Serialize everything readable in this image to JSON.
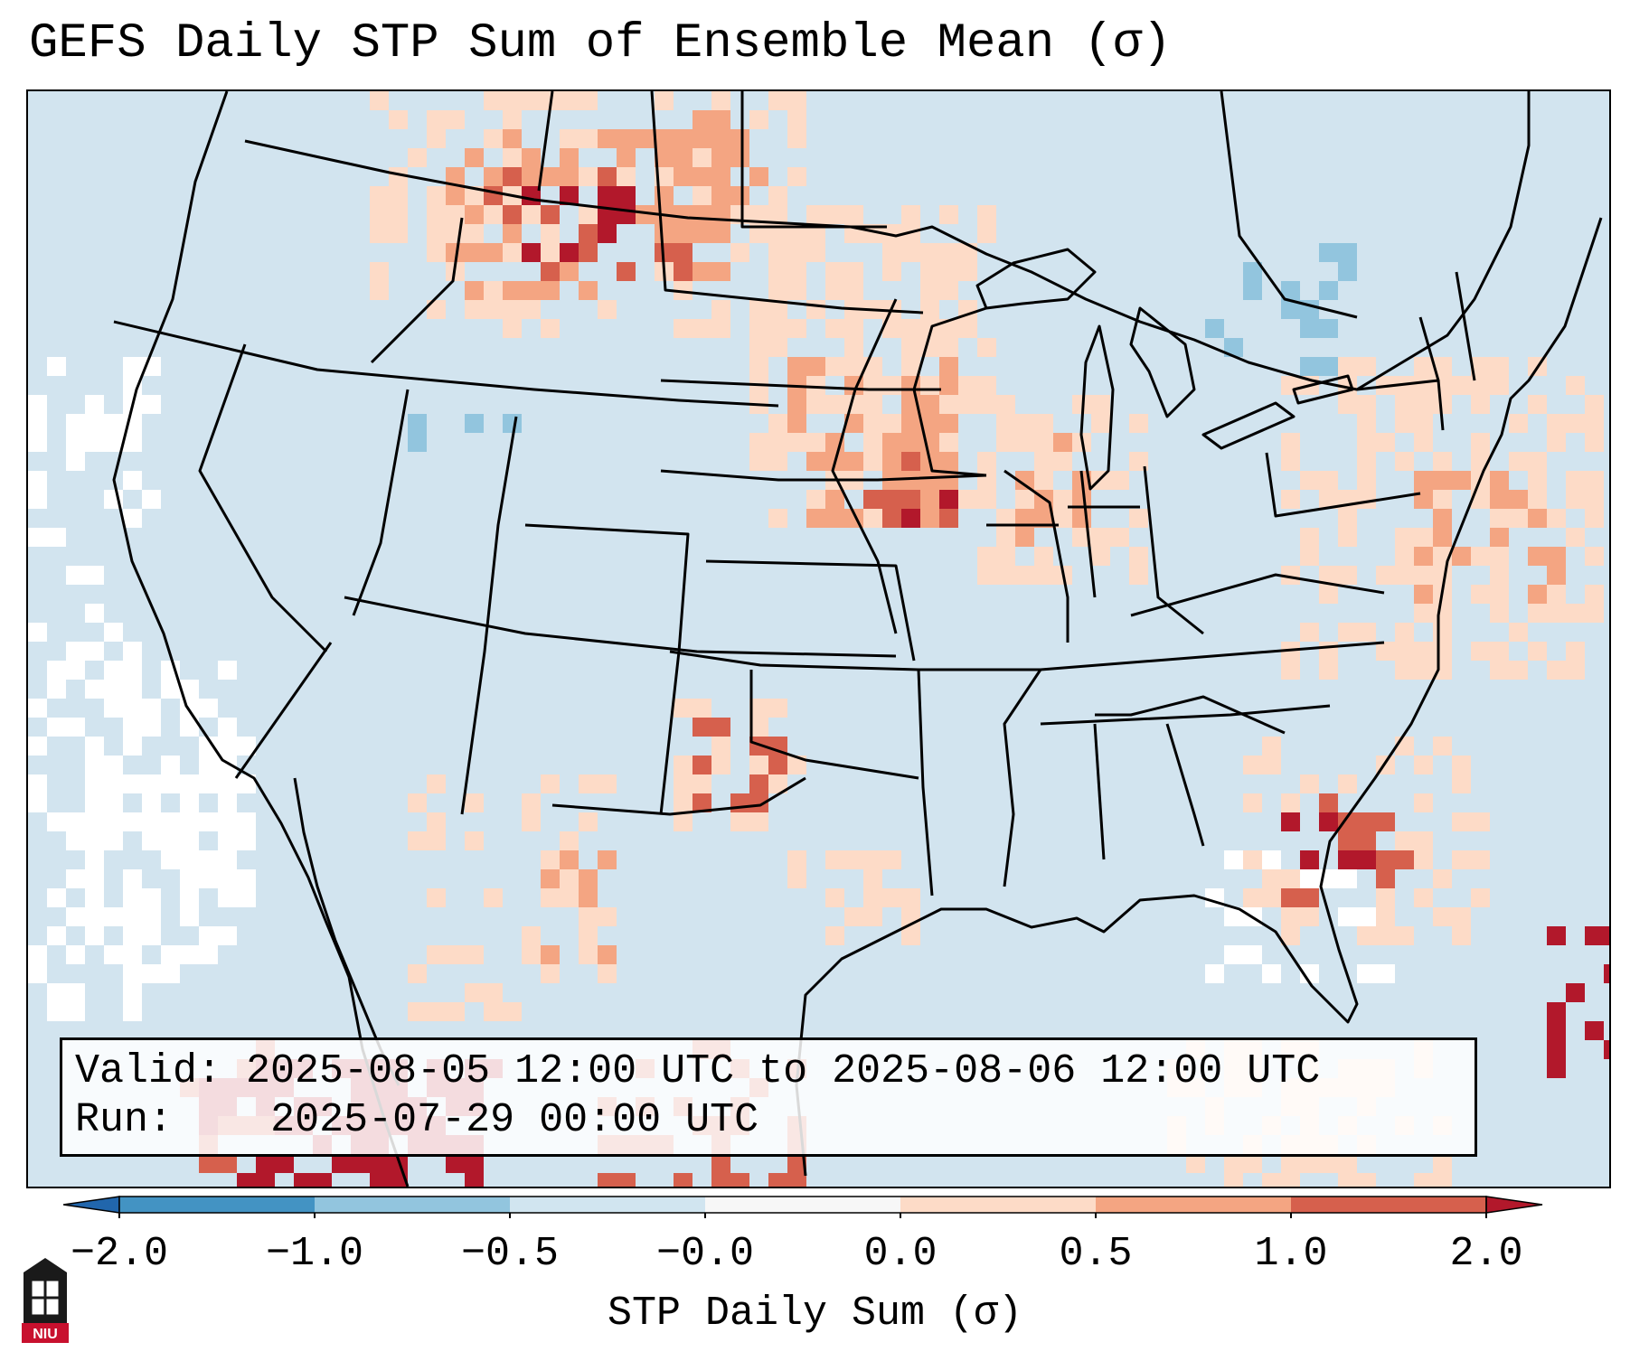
{
  "title": "GEFS Daily STP Sum of Ensemble Mean (σ)",
  "info": {
    "valid_label": "Valid:",
    "valid_value": "2025-08-05 12:00 UTC to 2025-08-06 12:00 UTC",
    "run_label": "Run:",
    "run_value": "2025-07-29 00:00 UTC"
  },
  "colorbar": {
    "label": "STP Daily Sum (σ)",
    "ticks": [
      "−2.0",
      "−1.0",
      "−0.5",
      "−0.0",
      "0.0",
      "0.5",
      "1.0",
      "2.0"
    ],
    "bins": [
      {
        "from": -2.0,
        "to": -1.0,
        "color": "#4393c3"
      },
      {
        "from": -1.0,
        "to": -0.5,
        "color": "#92c5de"
      },
      {
        "from": -0.5,
        "to": -0.0,
        "color": "#d1e5f0"
      },
      {
        "from": -0.0,
        "to": 0.0,
        "color": "#f7f7f7"
      },
      {
        "from": 0.0,
        "to": 0.5,
        "color": "#fddbc7"
      },
      {
        "from": 0.5,
        "to": 1.0,
        "color": "#f4a582"
      },
      {
        "from": 1.0,
        "to": 2.0,
        "color": "#d6604d"
      }
    ],
    "under_color": "#2166ac",
    "over_color": "#b2182b",
    "extend": "both"
  },
  "colors": {
    "background": "#d2e4ef",
    "neutral": "#ffffff",
    "light_red": "#fddbc7",
    "mid_red": "#f4a582",
    "red": "#d6604d",
    "dark_red": "#b2182b",
    "light_blue": "#92c5de"
  },
  "logo_text": "NIU"
}
